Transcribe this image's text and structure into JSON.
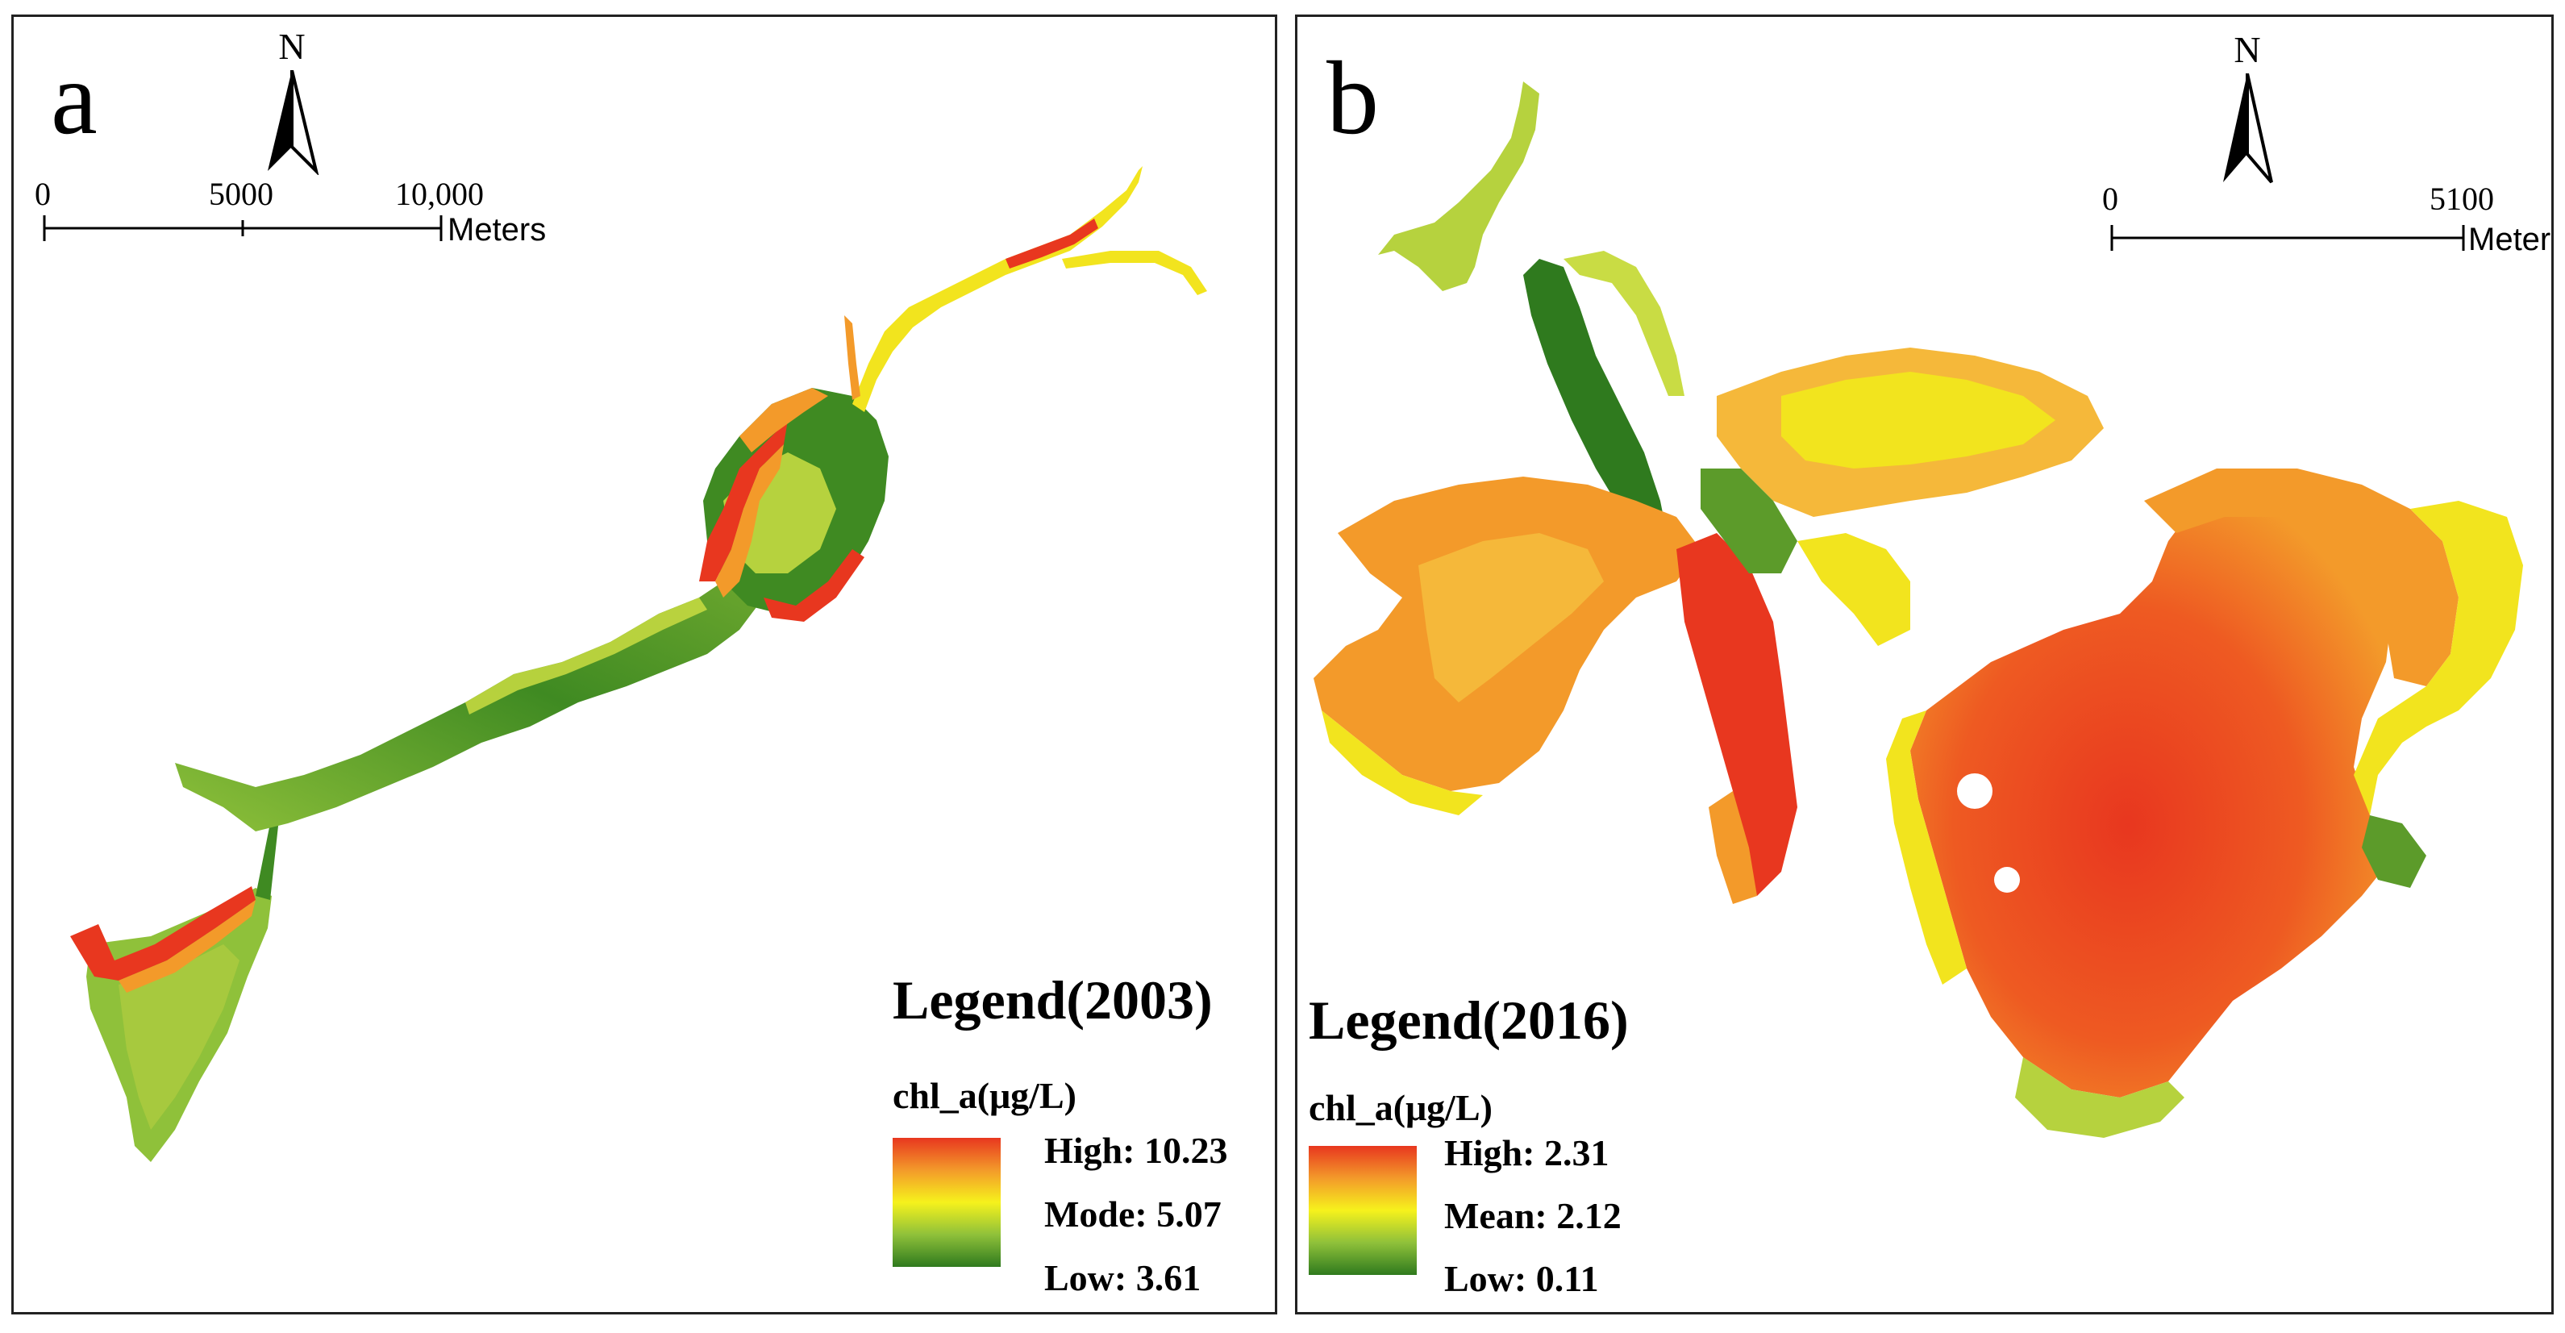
{
  "panels": [
    {
      "letter": "a",
      "north": "N",
      "scale": {
        "ticks": [
          "0",
          "5000",
          "10,000"
        ],
        "unit": "Meters"
      },
      "legend": {
        "title": "Legend(2003)",
        "variable": "chl_a(μg/L)",
        "high": "High: 10.23",
        "middle": "Mode: 5.07",
        "low": "Low: 3.61"
      }
    },
    {
      "letter": "b",
      "north": "N",
      "scale": {
        "ticks": [
          "0",
          "5100"
        ],
        "unit": "Meters"
      },
      "legend": {
        "title": "Legend(2016)",
        "variable": "chl_a(μg/L)",
        "high": "High: 2.31",
        "middle": "Mean: 2.12",
        "low": "Low: 0.11"
      }
    }
  ],
  "colors": {
    "high": "#e8371f",
    "mid_orange": "#f39a2a",
    "middle": "#f6f21c",
    "low_green": "#8fc13a",
    "low": "#2f7a1e"
  }
}
